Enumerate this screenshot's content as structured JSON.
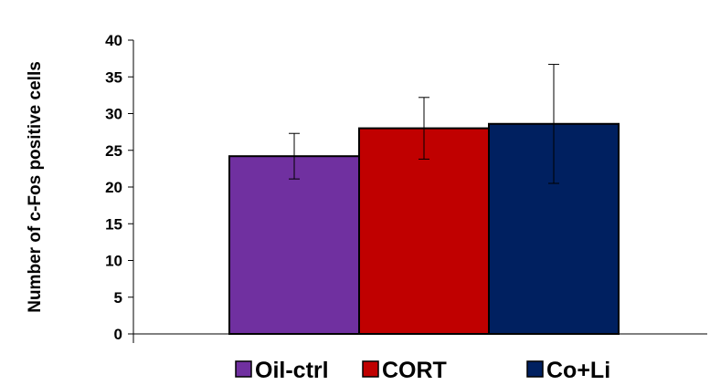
{
  "chart_data": {
    "type": "bar",
    "title": "",
    "xlabel": "",
    "ylabel": "Number of c-Fos positive cells",
    "ylim": [
      0,
      40
    ],
    "yticks": [
      0,
      5,
      10,
      15,
      20,
      25,
      30,
      35,
      40
    ],
    "grid": false,
    "legend_position": "bottom",
    "series": [
      {
        "name": "Oil-ctrl",
        "value": 24.2,
        "error": 3.1,
        "color": "#7030a0"
      },
      {
        "name": "CORT",
        "value": 28.0,
        "error": 4.2,
        "color": "#c00000"
      },
      {
        "name": "Co+Li",
        "value": 28.6,
        "error": 8.1,
        "color": "#002060"
      }
    ]
  }
}
